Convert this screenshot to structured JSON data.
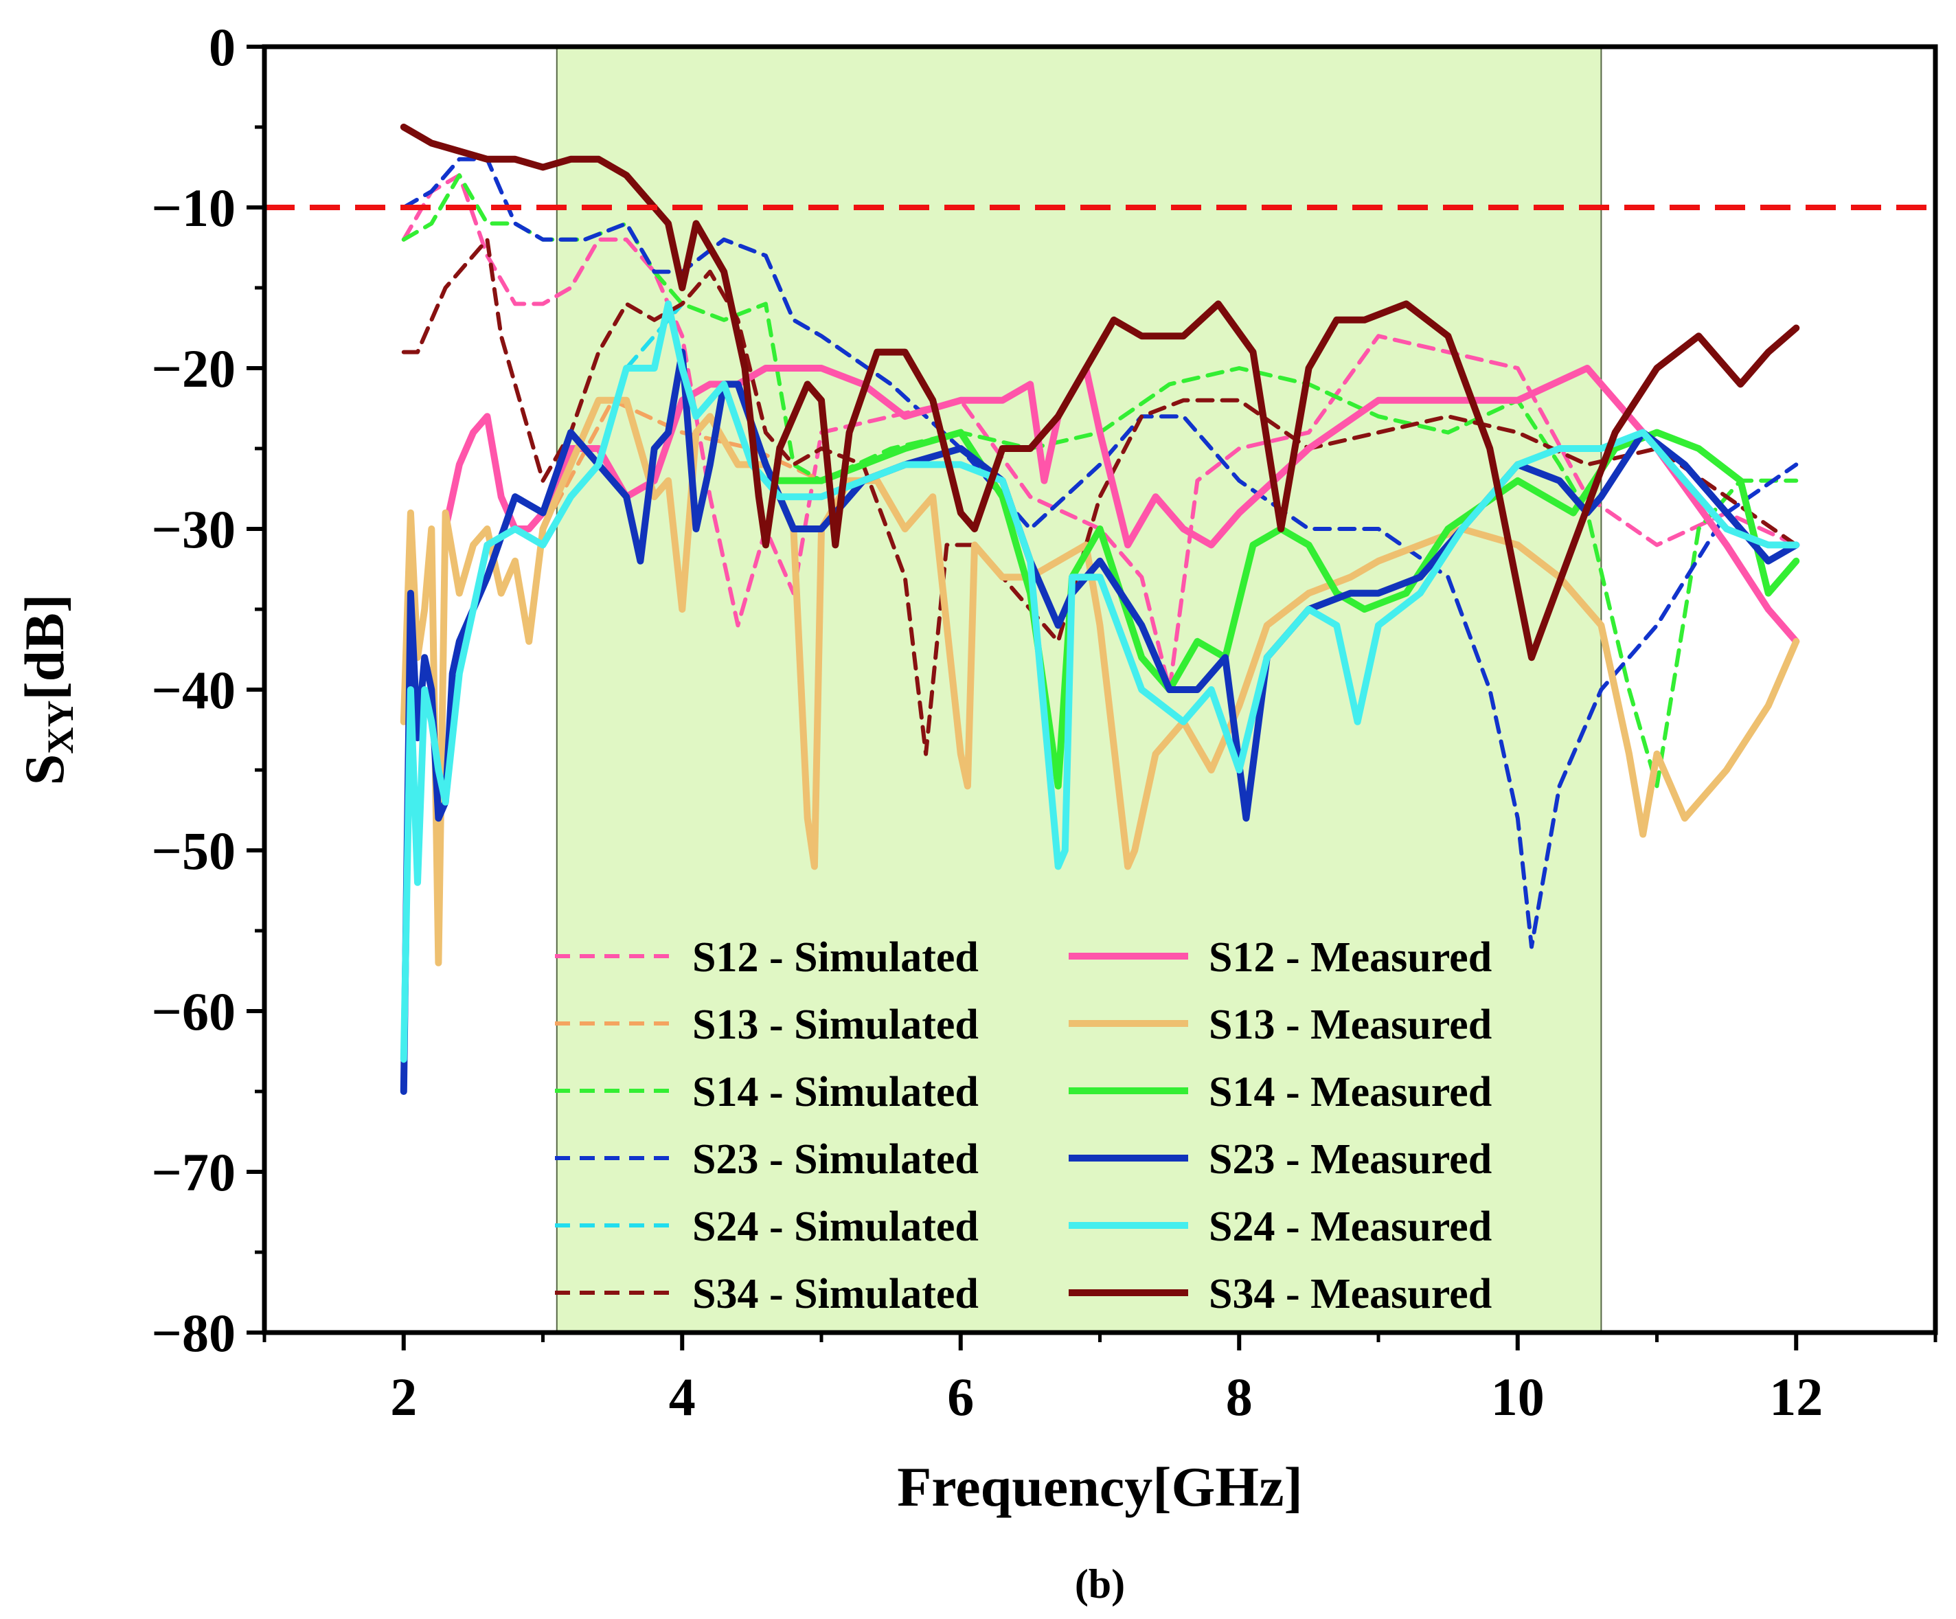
{
  "chart_data": {
    "type": "line",
    "caption": "(b)",
    "xlabel": "Frequency[GHz]",
    "ylabel_main": "S",
    "ylabel_sub": "XY",
    "ylabel_rest": "[dB]",
    "xlim": [
      1,
      13
    ],
    "ylim": [
      -80,
      0
    ],
    "xticks": [
      2,
      4,
      6,
      8,
      10,
      12
    ],
    "xtick_labels": [
      "2",
      "4",
      "6",
      "8",
      "10",
      "12"
    ],
    "yticks": [
      0,
      -10,
      -20,
      -30,
      -40,
      -50,
      -60,
      -70,
      -80
    ],
    "ytick_labels": [
      "0",
      "−10",
      "−20",
      "−30",
      "−40",
      "−50",
      "−60",
      "−70",
      "−80"
    ],
    "shaded_band": {
      "x_from": 3.1,
      "x_to": 10.6,
      "color": "#e0f7c4"
    },
    "reference_line": {
      "y": -10,
      "color": "#ee1111",
      "style": "dashed"
    },
    "legend_position": "bottom-center",
    "series": [
      {
        "name": "S12 - Simulated",
        "color": "#ff55aa",
        "style": "dashed",
        "x": [
          2,
          2.2,
          2.4,
          2.6,
          2.8,
          3.0,
          3.2,
          3.4,
          3.6,
          3.8,
          4.0,
          4.2,
          4.4,
          4.6,
          4.8,
          5.0,
          5.5,
          6.0,
          6.5,
          7.0,
          7.3,
          7.5,
          7.7,
          8.0,
          8.5,
          9.0,
          9.5,
          10.0,
          10.5,
          11.0,
          11.5,
          12.0
        ],
        "y": [
          -12,
          -9,
          -8,
          -13,
          -16,
          -16,
          -15,
          -12,
          -12,
          -14,
          -18,
          -28,
          -36,
          -30,
          -34,
          -24,
          -23,
          -22,
          -28,
          -30,
          -33,
          -40,
          -27,
          -25,
          -24,
          -18,
          -19,
          -20,
          -28,
          -31,
          -29,
          -31
        ]
      },
      {
        "name": "S13 - Simulated",
        "color": "#f4a460",
        "style": "dashed",
        "x": [
          3.0,
          3.5,
          4.0,
          4.5,
          5.0
        ],
        "y": [
          -30,
          -22,
          -24,
          -25,
          -27
        ]
      },
      {
        "name": "S14 - Simulated",
        "color": "#33ee33",
        "style": "dashed",
        "x": [
          2,
          2.2,
          2.4,
          2.6,
          2.8,
          3.0,
          3.3,
          3.6,
          3.8,
          4.0,
          4.3,
          4.6,
          4.8,
          5.0,
          5.5,
          6.0,
          6.5,
          7.0,
          7.5,
          8.0,
          8.5,
          9.0,
          9.5,
          10.0,
          10.3,
          10.5,
          10.8,
          11.0,
          11.3,
          11.6,
          12.0
        ],
        "y": [
          -12,
          -11,
          -8,
          -11,
          -11,
          -12,
          -12,
          -11,
          -14,
          -16,
          -17,
          -16,
          -26,
          -27,
          -25,
          -24,
          -25,
          -24,
          -21,
          -20,
          -21,
          -23,
          -24,
          -22,
          -26,
          -29,
          -40,
          -46,
          -30,
          -27,
          -27
        ]
      },
      {
        "name": "S23 - Simulated",
        "color": "#1133cc",
        "style": "dashed",
        "x": [
          2,
          2.2,
          2.4,
          2.6,
          2.8,
          3.0,
          3.3,
          3.6,
          3.8,
          4.0,
          4.3,
          4.6,
          4.8,
          5.0,
          5.5,
          6.0,
          6.5,
          7.0,
          7.3,
          7.6,
          8.0,
          8.5,
          9.0,
          9.5,
          9.8,
          10.0,
          10.1,
          10.3,
          10.6,
          11.0,
          11.5,
          12.0
        ],
        "y": [
          -10,
          -9,
          -7,
          -7,
          -11,
          -12,
          -12,
          -11,
          -14,
          -14,
          -12,
          -13,
          -17,
          -18,
          -21,
          -25,
          -30,
          -26,
          -23,
          -23,
          -27,
          -30,
          -30,
          -33,
          -40,
          -48,
          -56,
          -46,
          -40,
          -36,
          -29,
          -26
        ]
      },
      {
        "name": "S24 - Simulated",
        "color": "#22ddee",
        "style": "dashed",
        "x": [
          3.6,
          3.8,
          4.0
        ],
        "y": [
          -20,
          -18,
          -16
        ]
      },
      {
        "name": "S34 - Simulated",
        "color": "#881111",
        "style": "dashed",
        "x": [
          2,
          2.1,
          2.3,
          2.5,
          2.6,
          2.7,
          2.9,
          3.0,
          3.2,
          3.4,
          3.6,
          3.8,
          4.0,
          4.2,
          4.4,
          4.6,
          4.8,
          5.0,
          5.3,
          5.6,
          5.75,
          5.9,
          6.1,
          6.4,
          6.7,
          7.0,
          7.3,
          7.6,
          8.0,
          8.5,
          9.0,
          9.5,
          10.0,
          10.5,
          11.0,
          11.5,
          12.0
        ],
        "y": [
          -19,
          -19,
          -15,
          -13,
          -12,
          -18,
          -24,
          -27,
          -24,
          -19,
          -16,
          -17,
          -16,
          -14,
          -17,
          -24,
          -26,
          -25,
          -26,
          -33,
          -44,
          -31,
          -31,
          -34,
          -37,
          -28,
          -23,
          -22,
          -22,
          -25,
          -24,
          -23,
          -24,
          -26,
          -25,
          -28,
          -31
        ]
      },
      {
        "name": "S12 - Measured",
        "color": "#ff55aa",
        "style": "solid",
        "x": [
          2.3,
          2.4,
          2.5,
          2.6,
          2.7,
          2.8,
          2.9,
          3.0,
          3.2,
          3.4,
          3.6,
          3.8,
          4.0,
          4.2,
          4.4,
          4.6,
          4.8,
          5.0,
          5.3,
          5.6,
          6.0,
          6.3,
          6.5,
          6.6,
          6.7,
          6.9,
          7.0,
          7.2,
          7.4,
          7.6,
          7.8,
          8.0,
          8.5,
          9.0,
          9.5,
          10.0,
          10.5,
          11.0,
          11.5,
          11.8,
          12.0
        ],
        "y": [
          -30,
          -26,
          -24,
          -23,
          -28,
          -30,
          -30,
          -29,
          -25,
          -25,
          -28,
          -27,
          -22,
          -21,
          -21,
          -20,
          -20,
          -20,
          -21,
          -23,
          -22,
          -22,
          -21,
          -27,
          -23,
          -20,
          -24,
          -31,
          -28,
          -30,
          -31,
          -29,
          -25,
          -22,
          -22,
          -22,
          -20,
          -25,
          -31,
          -35,
          -37
        ]
      },
      {
        "name": "S13 - Measured",
        "color": "#eec070",
        "style": "solid",
        "x": [
          2.0,
          2.05,
          2.1,
          2.15,
          2.2,
          2.25,
          2.3,
          2.4,
          2.5,
          2.6,
          2.7,
          2.8,
          2.9,
          3.0,
          3.2,
          3.4,
          3.6,
          3.8,
          3.9,
          4.0,
          4.1,
          4.2,
          4.4,
          4.6,
          4.8,
          4.9,
          4.95,
          5.0,
          5.2,
          5.4,
          5.6,
          5.8,
          6.0,
          6.05,
          6.1,
          6.3,
          6.5,
          6.7,
          6.9,
          7.0,
          7.2,
          7.25,
          7.4,
          7.6,
          7.8,
          8.0,
          8.2,
          8.5,
          8.8,
          9.0,
          9.3,
          9.6,
          10.0,
          10.3,
          10.6,
          10.8,
          10.9,
          11.0,
          11.1,
          11.2,
          11.5,
          11.8,
          12.0
        ],
        "y": [
          -42,
          -29,
          -38,
          -35,
          -30,
          -57,
          -29,
          -34,
          -31,
          -30,
          -34,
          -32,
          -37,
          -30,
          -26,
          -22,
          -22,
          -28,
          -27,
          -35,
          -24,
          -23,
          -26,
          -26,
          -30,
          -48,
          -51,
          -30,
          -27,
          -27,
          -30,
          -28,
          -44,
          -46,
          -31,
          -33,
          -33,
          -32,
          -31,
          -36,
          -51,
          -50,
          -44,
          -42,
          -45,
          -41,
          -36,
          -34,
          -33,
          -32,
          -31,
          -30,
          -31,
          -33,
          -36,
          -44,
          -49,
          -44,
          -46,
          -48,
          -45,
          -41,
          -37
        ]
      },
      {
        "name": "S14 - Measured",
        "color": "#33ee33",
        "style": "solid",
        "x": [
          4.6,
          4.8,
          5.0,
          5.3,
          5.6,
          6.0,
          6.3,
          6.5,
          6.7,
          6.8,
          7.0,
          7.3,
          7.5,
          7.7,
          7.9,
          8.1,
          8.3,
          8.5,
          8.7,
          8.9,
          9.2,
          9.5,
          10.0,
          10.4,
          10.7,
          11.0,
          11.3,
          11.6,
          11.8,
          12.0
        ],
        "y": [
          -27,
          -27,
          -27,
          -26,
          -25,
          -24,
          -28,
          -34,
          -46,
          -33,
          -30,
          -38,
          -40,
          -37,
          -38,
          -31,
          -30,
          -31,
          -34,
          -35,
          -34,
          -30,
          -27,
          -29,
          -25,
          -24,
          -25,
          -27,
          -34,
          -32
        ]
      },
      {
        "name": "S23 - Measured",
        "color": "#1133bb",
        "style": "solid",
        "x": [
          2.0,
          2.05,
          2.1,
          2.15,
          2.2,
          2.25,
          2.3,
          2.35,
          2.4,
          2.6,
          2.8,
          3.0,
          3.2,
          3.4,
          3.6,
          3.7,
          3.8,
          3.9,
          4.0,
          4.1,
          4.2,
          4.3,
          4.4,
          4.6,
          4.8,
          5.0,
          5.3,
          5.6,
          6.0,
          6.3,
          6.5,
          6.7,
          6.8,
          7.0,
          7.3,
          7.5,
          7.7,
          7.9,
          8.05,
          8.2,
          8.5,
          8.8,
          9.0,
          9.3,
          9.6,
          10.0,
          10.3,
          10.5,
          10.6,
          10.9,
          11.2,
          11.5,
          11.8,
          12.0
        ],
        "y": [
          -65,
          -34,
          -43,
          -38,
          -40,
          -48,
          -47,
          -39,
          -37,
          -33,
          -28,
          -29,
          -24,
          -26,
          -28,
          -32,
          -25,
          -24,
          -19,
          -30,
          -26,
          -21,
          -21,
          -26,
          -30,
          -30,
          -27,
          -26,
          -25,
          -27,
          -32,
          -36,
          -34,
          -32,
          -36,
          -40,
          -40,
          -38,
          -48,
          -38,
          -35,
          -34,
          -34,
          -33,
          -30,
          -26,
          -27,
          -29,
          -28,
          -24,
          -26,
          -29,
          -32,
          -31
        ]
      },
      {
        "name": "S24 - Measured",
        "color": "#44eeee",
        "style": "solid",
        "x": [
          2.0,
          2.05,
          2.1,
          2.15,
          2.2,
          2.25,
          2.3,
          2.4,
          2.6,
          2.8,
          3.0,
          3.2,
          3.4,
          3.6,
          3.8,
          3.9,
          4.0,
          4.1,
          4.2,
          4.3,
          4.5,
          4.7,
          5.0,
          5.3,
          5.6,
          6.0,
          6.3,
          6.5,
          6.7,
          6.75,
          6.8,
          7.0,
          7.3,
          7.6,
          7.8,
          8.0,
          8.2,
          8.5,
          8.7,
          8.85,
          9.0,
          9.3,
          9.6,
          10.0,
          10.3,
          10.6,
          10.9,
          11.2,
          11.5,
          11.8,
          12.0
        ],
        "y": [
          -63,
          -40,
          -52,
          -40,
          -42,
          -45,
          -47,
          -39,
          -31,
          -30,
          -31,
          -28,
          -26,
          -20,
          -20,
          -16,
          -20,
          -23,
          -22,
          -21,
          -26,
          -28,
          -28,
          -27,
          -26,
          -26,
          -27,
          -32,
          -51,
          -50,
          -33,
          -33,
          -40,
          -42,
          -40,
          -45,
          -38,
          -35,
          -36,
          -42,
          -36,
          -34,
          -30,
          -26,
          -25,
          -25,
          -24,
          -27,
          -30,
          -31,
          -31
        ]
      },
      {
        "name": "S34 - Measured",
        "color": "#7a0a0a",
        "style": "solid",
        "x": [
          2.0,
          2.2,
          2.4,
          2.6,
          2.8,
          3.0,
          3.2,
          3.4,
          3.6,
          3.8,
          3.9,
          4.0,
          4.05,
          4.1,
          4.3,
          4.45,
          4.55,
          4.6,
          4.7,
          4.9,
          5.0,
          5.1,
          5.2,
          5.4,
          5.6,
          5.8,
          6.0,
          6.1,
          6.3,
          6.5,
          6.7,
          6.9,
          7.1,
          7.3,
          7.6,
          7.85,
          8.1,
          8.3,
          8.5,
          8.7,
          8.9,
          9.2,
          9.5,
          9.8,
          10.1,
          10.4,
          10.7,
          11.0,
          11.3,
          11.6,
          11.8,
          12.0
        ],
        "y": [
          -5,
          -6,
          -6.5,
          -7,
          -7,
          -7.5,
          -7,
          -7,
          -8,
          -10,
          -11,
          -15,
          -13,
          -11,
          -14,
          -20,
          -28,
          -31,
          -25,
          -21,
          -22,
          -31,
          -24,
          -19,
          -19,
          -22,
          -29,
          -30,
          -25,
          -25,
          -23,
          -20,
          -17,
          -18,
          -18,
          -16,
          -19,
          -30,
          -20,
          -17,
          -17,
          -16,
          -18,
          -25,
          -38,
          -31,
          -24,
          -20,
          -18,
          -21,
          -19,
          -17.5
        ]
      }
    ]
  }
}
